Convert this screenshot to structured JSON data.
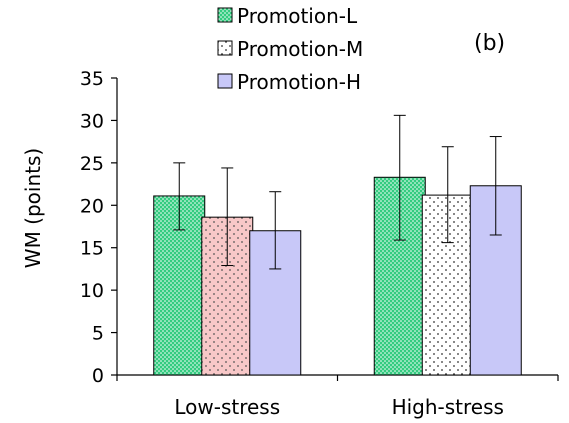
{
  "chart_data": {
    "type": "bar",
    "panel_label": "(b)",
    "ylabel": "WM (points)",
    "xlabel": "",
    "ylim": [
      0,
      35
    ],
    "yticks": [
      0,
      5,
      10,
      15,
      20,
      25,
      30,
      35
    ],
    "categories": [
      "Low-stress",
      "High-stress"
    ],
    "legend_position": "top-center",
    "grid": false,
    "series": [
      {
        "name": "Promotion-L",
        "color": "#33cc80",
        "pattern": "dense-dots",
        "values": [
          21.1,
          23.3
        ],
        "error_low": [
          17.1,
          15.9
        ],
        "error_high": [
          25.0,
          30.6
        ]
      },
      {
        "name": "Promotion-M",
        "color": "#ffffff",
        "pattern": "sparse-dots",
        "values": [
          18.6,
          21.2
        ],
        "error_low": [
          12.9,
          15.6
        ],
        "error_high": [
          24.4,
          26.9
        ],
        "category_colors": [
          "#f8c8c8",
          "#ffffff"
        ]
      },
      {
        "name": "Promotion-H",
        "color": "#c8c8f8",
        "pattern": "solid",
        "values": [
          17.0,
          22.3
        ],
        "error_low": [
          12.5,
          16.5
        ],
        "error_high": [
          21.6,
          28.1
        ]
      }
    ]
  }
}
